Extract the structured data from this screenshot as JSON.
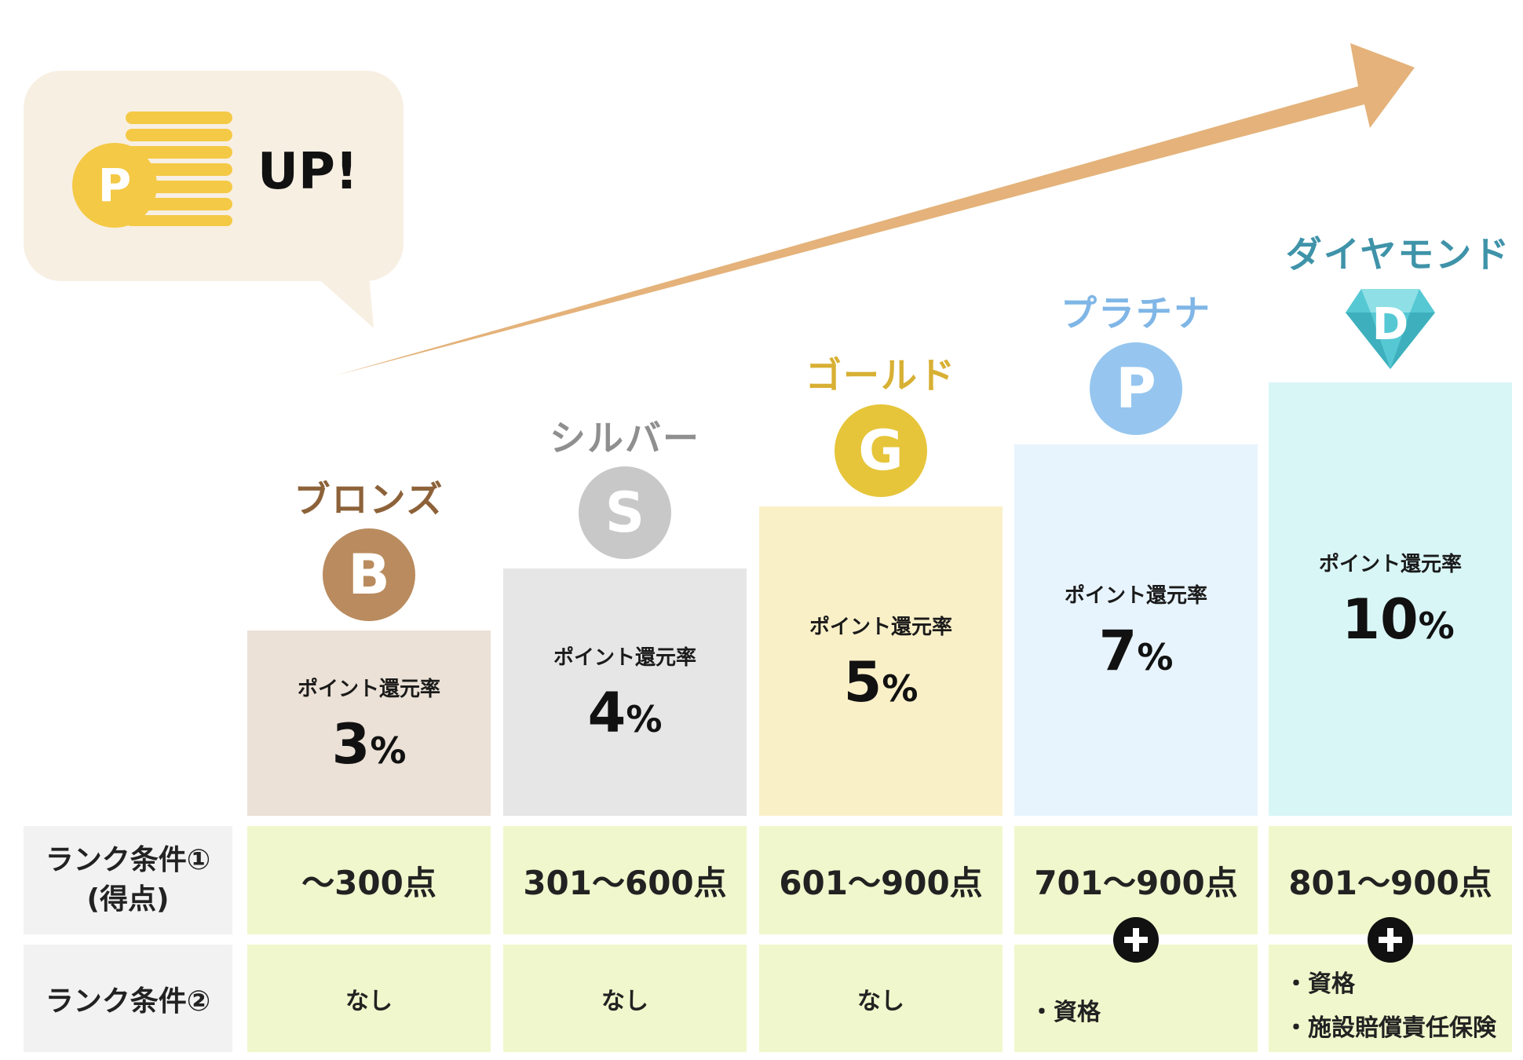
{
  "promo": {
    "coin_letter": "P",
    "up_label": "UP!"
  },
  "rate_label": "ポイント還元率",
  "condition_labels": {
    "cond1_line1": "ランク条件①",
    "cond1_line2": "(得点)",
    "cond2": "ランク条件②"
  },
  "ranks": [
    {
      "name": "ブロンズ",
      "letter": "B",
      "rate": "3",
      "pct": "%",
      "cond1": "〜300点",
      "cond2": [
        "なし"
      ],
      "name_color": "#8d6239",
      "badge_color": "#b98b5e",
      "box_color": "#ebe1d6"
    },
    {
      "name": "シルバー",
      "letter": "S",
      "rate": "4",
      "pct": "%",
      "cond1": "301〜600点",
      "cond2": [
        "なし"
      ],
      "name_color": "#8f8f8f",
      "badge_color": "#c8c8c8",
      "box_color": "#e6e6e6"
    },
    {
      "name": "ゴールド",
      "letter": "G",
      "rate": "5",
      "pct": "%",
      "cond1": "601〜900点",
      "cond2": [
        "なし"
      ],
      "name_color": "#d8b033",
      "badge_color": "#e6c53a",
      "box_color": "#faf0c8"
    },
    {
      "name": "プラチナ",
      "letter": "P",
      "rate": "7",
      "pct": "%",
      "cond1": "701〜900点",
      "cond2": [
        "・資格"
      ],
      "name_color": "#7fb6e6",
      "badge_color": "#96c6ef",
      "box_color": "#e8f4fd"
    },
    {
      "name": "ダイヤモンド",
      "letter": "D",
      "rate": "10",
      "pct": "%",
      "cond1": "801〜900点",
      "cond2": [
        "・資格",
        "・施設賠償責任保険"
      ],
      "name_color": "#3f93a9",
      "badge_color": "#56c8d3",
      "box_color": "#d9f6f7"
    }
  ]
}
